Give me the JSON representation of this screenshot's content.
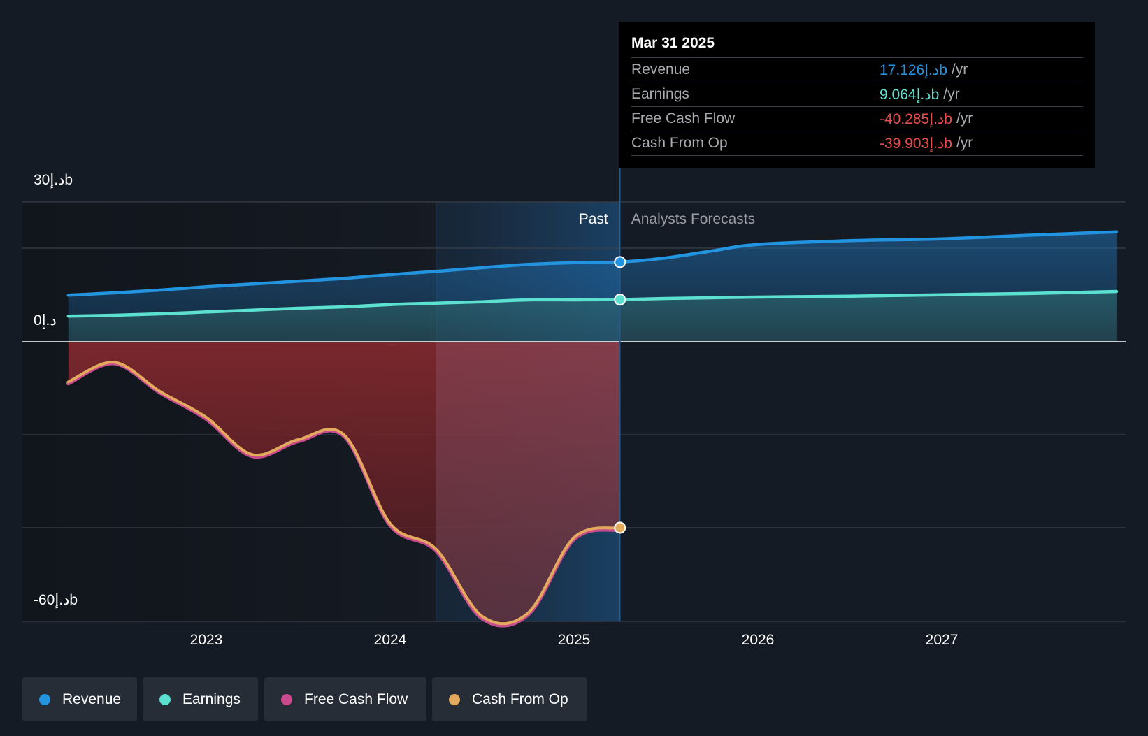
{
  "chart_data": {
    "type": "line",
    "y_axis": {
      "min": -60,
      "max": 30,
      "tick_labels": [
        "30ﺩ.ﺇb",
        "0ﺩ.ﺇ",
        "-60ﺩ.ﺇb"
      ],
      "tick_values": [
        30,
        0,
        -60
      ]
    },
    "x_axis": {
      "range": [
        2022.25,
        2027.95
      ],
      "tick_labels": [
        "2023",
        "2024",
        "2025",
        "2026",
        "2027"
      ],
      "tick_values": [
        2023,
        2024,
        2025,
        2026,
        2027
      ]
    },
    "grid": true,
    "divider_x": 2025.25,
    "highlight_start_x": 2024.25,
    "past_label": "Past",
    "forecast_label": "Analysts Forecasts",
    "colors": {
      "background": "#151b24",
      "revenue": "#2394df",
      "earnings": "#5ce1d0",
      "free_cash_flow": "#c94b8e",
      "cash_from_op": "#e3a95c",
      "negative_fill": "#8b2a2f"
    },
    "series": [
      {
        "name": "Revenue",
        "color": "#2394df",
        "x": [
          2022.25,
          2022.5,
          2022.75,
          2023.0,
          2023.25,
          2023.5,
          2023.75,
          2024.0,
          2024.25,
          2024.5,
          2024.75,
          2025.0,
          2025.25,
          2025.5,
          2025.75,
          2026.0,
          2026.5,
          2027.0,
          2027.5,
          2027.95
        ],
        "y": [
          10.0,
          10.5,
          11.1,
          11.8,
          12.4,
          13.0,
          13.6,
          14.4,
          15.1,
          15.9,
          16.6,
          17.0,
          17.126,
          18.0,
          19.5,
          20.9,
          21.7,
          22.1,
          22.9,
          23.6
        ]
      },
      {
        "name": "Earnings",
        "color": "#5ce1d0",
        "x": [
          2022.25,
          2022.5,
          2022.75,
          2023.0,
          2023.25,
          2023.5,
          2023.75,
          2024.0,
          2024.25,
          2024.5,
          2024.75,
          2025.0,
          2025.25,
          2025.5,
          2026.0,
          2026.5,
          2027.0,
          2027.5,
          2027.95
        ],
        "y": [
          5.5,
          5.7,
          6.0,
          6.4,
          6.8,
          7.2,
          7.5,
          8.0,
          8.3,
          8.6,
          9.0,
          9.0,
          9.064,
          9.3,
          9.6,
          9.8,
          10.1,
          10.4,
          10.8
        ]
      },
      {
        "name": "Free Cash Flow",
        "color": "#c94b8e",
        "x": [
          2022.25,
          2022.5,
          2022.75,
          2023.0,
          2023.25,
          2023.5,
          2023.75,
          2024.0,
          2024.25,
          2024.5,
          2024.75,
          2025.0,
          2025.25
        ],
        "y": [
          -8.9,
          -4.6,
          -10.9,
          -16.5,
          -24.5,
          -21.3,
          -20.2,
          -39.3,
          -44.8,
          -59.3,
          -58.5,
          -42.3,
          -40.285
        ]
      },
      {
        "name": "Cash From Op",
        "color": "#e3a95c",
        "x": [
          2022.25,
          2022.5,
          2022.75,
          2023.0,
          2023.25,
          2023.5,
          2023.75,
          2024.0,
          2024.25,
          2024.5,
          2024.75,
          2025.0,
          2025.25
        ],
        "y": [
          -8.6,
          -4.4,
          -10.7,
          -16.2,
          -24.2,
          -21.0,
          -20.0,
          -39.0,
          -44.5,
          -58.9,
          -58.2,
          -42.0,
          -39.903
        ]
      }
    ]
  },
  "tooltip": {
    "date": "Mar 31 2025",
    "rows": [
      {
        "label": "Revenue",
        "value": "17.126ﺩ.ﺇb",
        "unit": "/yr",
        "color": "#2394df"
      },
      {
        "label": "Earnings",
        "value": "9.064ﺩ.ﺇb",
        "unit": "/yr",
        "color": "#5ce1d0"
      },
      {
        "label": "Free Cash Flow",
        "value": "-40.285ﺩ.ﺇb",
        "unit": "/yr",
        "color": "#e84b4b"
      },
      {
        "label": "Cash From Op",
        "value": "-39.903ﺩ.ﺇb",
        "unit": "/yr",
        "color": "#e84b4b"
      }
    ]
  },
  "legend": [
    {
      "label": "Revenue",
      "color": "#2394df"
    },
    {
      "label": "Earnings",
      "color": "#5ce1d0"
    },
    {
      "label": "Free Cash Flow",
      "color": "#c94b8e"
    },
    {
      "label": "Cash From Op",
      "color": "#e3a95c"
    }
  ]
}
